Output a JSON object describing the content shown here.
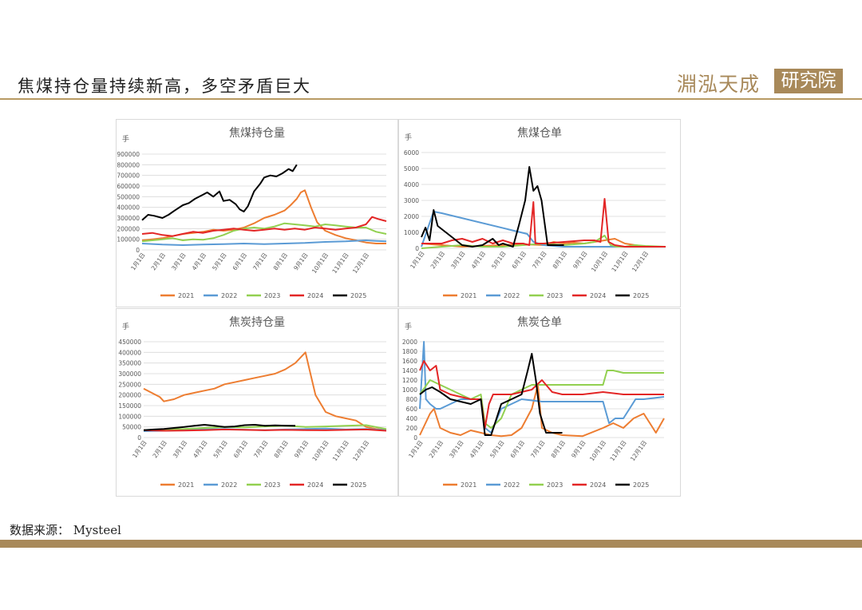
{
  "header": {
    "title": "焦煤持仓量持续新高，多空矛盾巨大",
    "logo_text": "淵泓天成",
    "logo_box_text": "研究院"
  },
  "footer": {
    "source": "数据来源： Mysteel"
  },
  "colors": {
    "2021": "#ED7D31",
    "2022": "#5B9BD5",
    "2023": "#92D050",
    "2024": "#E32626",
    "2025": "#000000"
  },
  "chart_data": [
    {
      "id": "coking-coal-oi",
      "type": "line",
      "title": "焦煤持仓量",
      "unit_label": "手",
      "ylim": [
        0,
        900000
      ],
      "y_ticks": [
        "0",
        "100000",
        "200000",
        "300000",
        "400000",
        "500000",
        "600000",
        "700000",
        "800000",
        "900000"
      ],
      "x_ticks": [
        "1月1日",
        "2月1日",
        "3月1日",
        "4月1日",
        "5月1日",
        "6月1日",
        "7月1日",
        "8月1日",
        "9月1日",
        "10月1日",
        "11月1日",
        "12月1日"
      ],
      "series": [
        {
          "name": "2021",
          "x": [
            0,
            0.5,
            1,
            1.5,
            2,
            2.5,
            3,
            3.5,
            4,
            4.5,
            5,
            5.5,
            6,
            6.5,
            7,
            7.3,
            7.6,
            7.8,
            8,
            8.3,
            8.6,
            9,
            9.5,
            10,
            10.5,
            11,
            11.5,
            12
          ],
          "values": [
            90000,
            100000,
            110000,
            130000,
            150000,
            160000,
            170000,
            190000,
            180000,
            190000,
            210000,
            250000,
            300000,
            330000,
            370000,
            420000,
            480000,
            540000,
            560000,
            400000,
            260000,
            180000,
            140000,
            110000,
            90000,
            70000,
            60000,
            60000
          ]
        },
        {
          "name": "2022",
          "x": [
            0,
            1,
            2,
            3,
            4,
            5,
            6,
            7,
            8,
            9,
            10,
            11,
            11.5,
            12
          ],
          "values": [
            60000,
            50000,
            45000,
            50000,
            55000,
            60000,
            55000,
            60000,
            65000,
            75000,
            80000,
            90000,
            85000,
            80000
          ]
        },
        {
          "name": "2023",
          "x": [
            0,
            0.5,
            1,
            1.5,
            2,
            2.5,
            3,
            3.5,
            4,
            4.5,
            5,
            5.5,
            6,
            6.5,
            7,
            7.5,
            8,
            8.5,
            9,
            9.5,
            10,
            10.5,
            11,
            11.5,
            12
          ],
          "values": [
            80000,
            90000,
            100000,
            110000,
            90000,
            100000,
            95000,
            110000,
            140000,
            180000,
            200000,
            210000,
            200000,
            220000,
            250000,
            240000,
            230000,
            220000,
            240000,
            230000,
            220000,
            210000,
            210000,
            170000,
            150000
          ]
        },
        {
          "name": "2024",
          "x": [
            0,
            0.5,
            1,
            1.5,
            2,
            2.5,
            3,
            3.5,
            4,
            4.5,
            5,
            5.5,
            6,
            6.5,
            7,
            7.5,
            8,
            8.5,
            9,
            9.5,
            10,
            10.5,
            11,
            11.3,
            11.6,
            12
          ],
          "values": [
            150000,
            160000,
            140000,
            130000,
            150000,
            170000,
            160000,
            180000,
            190000,
            200000,
            190000,
            180000,
            190000,
            200000,
            190000,
            200000,
            190000,
            210000,
            200000,
            190000,
            200000,
            210000,
            240000,
            310000,
            290000,
            270000
          ]
        },
        {
          "name": "2025",
          "x": [
            0,
            0.3,
            0.6,
            1,
            1.3,
            1.6,
            2,
            2.3,
            2.6,
            3,
            3.2,
            3.5,
            3.8,
            4,
            4.3,
            4.6,
            4.8,
            5,
            5.2,
            5.5,
            5.8,
            6,
            6.3,
            6.6,
            6.9,
            7.2,
            7.4,
            7.6
          ],
          "values": [
            280000,
            330000,
            320000,
            300000,
            330000,
            370000,
            420000,
            440000,
            480000,
            520000,
            540000,
            500000,
            550000,
            460000,
            470000,
            430000,
            380000,
            360000,
            410000,
            550000,
            620000,
            680000,
            700000,
            690000,
            720000,
            760000,
            740000,
            800000
          ]
        }
      ]
    },
    {
      "id": "coking-coal-warrants",
      "type": "line",
      "title": "焦煤仓单",
      "unit_label": "手",
      "ylim": [
        0,
        6000
      ],
      "y_ticks": [
        "0",
        "1000",
        "2000",
        "3000",
        "4000",
        "5000",
        "6000"
      ],
      "x_ticks": [
        "1月1日",
        "2月1日",
        "3月1日",
        "4月1日",
        "5月1日",
        "6月1日",
        "7月1日",
        "8月1日",
        "9月1日",
        "10月1日",
        "11月1日",
        "12月1日"
      ],
      "series": [
        {
          "name": "2021",
          "x": [
            0,
            1,
            2,
            3,
            4,
            5,
            6,
            6.5,
            7,
            7.5,
            8,
            8.5,
            9,
            9.5,
            10,
            10.5,
            11,
            12
          ],
          "values": [
            300,
            200,
            100,
            150,
            200,
            250,
            200,
            400,
            300,
            350,
            300,
            400,
            500,
            600,
            300,
            200,
            100,
            100
          ]
        },
        {
          "name": "2022",
          "x": [
            0,
            0.3,
            0.6,
            1,
            5.2,
            5.5,
            6,
            7,
            8,
            9,
            10,
            11,
            12
          ],
          "values": [
            100,
            1200,
            2300,
            2200,
            900,
            400,
            200,
            100,
            100,
            100,
            100,
            100,
            100
          ]
        },
        {
          "name": "2023",
          "x": [
            0,
            1,
            2,
            3,
            4,
            5,
            6,
            7,
            8,
            8.5,
            9,
            9.3,
            9.6,
            10,
            10.5,
            11,
            12
          ],
          "values": [
            0,
            100,
            200,
            100,
            100,
            200,
            300,
            200,
            300,
            400,
            800,
            200,
            100,
            100,
            200,
            150,
            100
          ]
        },
        {
          "name": "2024",
          "x": [
            0,
            1,
            1.5,
            2,
            2.5,
            3,
            3.5,
            4,
            4.5,
            5,
            5.3,
            5.5,
            5.6,
            6,
            7,
            8,
            8.5,
            8.8,
            9,
            9.2,
            9.5,
            10,
            11,
            12
          ],
          "values": [
            300,
            300,
            500,
            600,
            400,
            600,
            300,
            500,
            300,
            300,
            200,
            2900,
            300,
            300,
            400,
            500,
            500,
            400,
            3100,
            400,
            200,
            100,
            100,
            100
          ]
        },
        {
          "name": "2025",
          "x": [
            0,
            0.2,
            0.4,
            0.6,
            0.8,
            1,
            1.5,
            2,
            2.5,
            3,
            3.5,
            3.8,
            4,
            4.5,
            4.8,
            5.1,
            5.3,
            5.5,
            5.7,
            5.9,
            6.2,
            7
          ],
          "values": [
            700,
            1300,
            500,
            2400,
            1400,
            1200,
            700,
            200,
            100,
            200,
            600,
            200,
            300,
            100,
            1500,
            3000,
            5100,
            3600,
            3900,
            3000,
            200,
            200
          ]
        }
      ]
    },
    {
      "id": "coke-oi",
      "type": "line",
      "title": "焦炭持仓量",
      "unit_label": "手",
      "ylim": [
        0,
        450000
      ],
      "y_ticks": [
        "0",
        "50000",
        "100000",
        "150000",
        "200000",
        "250000",
        "300000",
        "350000",
        "400000",
        "450000"
      ],
      "x_ticks": [
        "1月1日",
        "2月1日",
        "3月1日",
        "4月1日",
        "5月1日",
        "6月1日",
        "7月1日",
        "8月1日",
        "9月1日",
        "10月1日",
        "11月1日",
        "12月1日"
      ],
      "series": [
        {
          "name": "2021",
          "x": [
            0,
            0.4,
            0.8,
            1,
            1.5,
            2,
            2.5,
            3,
            3.5,
            4,
            4.5,
            5,
            5.5,
            6,
            6.5,
            7,
            7.5,
            7.8,
            8,
            8.2,
            8.5,
            9,
            9.5,
            10,
            10.5,
            11,
            11.5,
            12
          ],
          "values": [
            230000,
            210000,
            190000,
            170000,
            180000,
            200000,
            210000,
            220000,
            230000,
            250000,
            260000,
            270000,
            280000,
            290000,
            300000,
            320000,
            350000,
            380000,
            400000,
            320000,
            200000,
            120000,
            100000,
            90000,
            80000,
            50000,
            40000,
            35000
          ]
        },
        {
          "name": "2022",
          "x": [
            0,
            1,
            2,
            3,
            4,
            5,
            6,
            7,
            8,
            9,
            10,
            11,
            12
          ],
          "values": [
            30000,
            32000,
            35000,
            38000,
            40000,
            37000,
            35000,
            38000,
            40000,
            42000,
            38000,
            40000,
            35000
          ]
        },
        {
          "name": "2023",
          "x": [
            0,
            1,
            2,
            3,
            4,
            5,
            6,
            7,
            8,
            9,
            10,
            11,
            12
          ],
          "values": [
            35000,
            38000,
            40000,
            45000,
            50000,
            48000,
            52000,
            55000,
            50000,
            52000,
            55000,
            58000,
            40000
          ]
        },
        {
          "name": "2024",
          "x": [
            0,
            1,
            2,
            3,
            4,
            5,
            6,
            7,
            8,
            9,
            10,
            11,
            12
          ],
          "values": [
            35000,
            32000,
            33000,
            35000,
            38000,
            36000,
            34000,
            36000,
            35000,
            34000,
            36000,
            38000,
            32000
          ]
        },
        {
          "name": "2025",
          "x": [
            0,
            0.5,
            1,
            1.5,
            2,
            2.5,
            3,
            3.5,
            4,
            4.5,
            5,
            5.5,
            6,
            6.5,
            7,
            7.5
          ],
          "values": [
            35000,
            38000,
            40000,
            45000,
            50000,
            55000,
            60000,
            55000,
            50000,
            52000,
            58000,
            60000,
            55000,
            57000,
            56000,
            55000
          ]
        }
      ]
    },
    {
      "id": "coke-warrants",
      "type": "line",
      "title": "焦炭仓单",
      "unit_label": "手",
      "ylim": [
        0,
        2000
      ],
      "y_ticks": [
        "0",
        "200",
        "400",
        "600",
        "800",
        "1000",
        "1200",
        "1400",
        "1600",
        "1800",
        "2000"
      ],
      "x_ticks": [
        "1月1日",
        "2月1日",
        "3月1日",
        "4月1日",
        "5月1日",
        "6月1日",
        "7月1日",
        "8月1日",
        "9月1日",
        "10月1日",
        "11月1日",
        "12月1日"
      ],
      "series": [
        {
          "name": "2021",
          "x": [
            0,
            0.5,
            0.7,
            1,
            1.5,
            2,
            2.5,
            3,
            3.5,
            4,
            4.5,
            5,
            5.5,
            5.8,
            6,
            6.5,
            7,
            8,
            9,
            9.5,
            10,
            10.5,
            11,
            11.3,
            11.6,
            12
          ],
          "values": [
            50,
            500,
            600,
            200,
            100,
            50,
            150,
            100,
            50,
            30,
            50,
            200,
            600,
            1100,
            200,
            100,
            50,
            30,
            200,
            300,
            200,
            400,
            500,
            300,
            100,
            400
          ]
        },
        {
          "name": "2022",
          "x": [
            0,
            0.2,
            0.3,
            0.5,
            0.8,
            1,
            2,
            3,
            3.2,
            3.5,
            4,
            4.5,
            5,
            6,
            7,
            8,
            9,
            9.3,
            9.6,
            10,
            10.3,
            10.6,
            11,
            12
          ],
          "values": [
            600,
            2000,
            800,
            700,
            600,
            600,
            800,
            800,
            200,
            100,
            600,
            700,
            800,
            750,
            750,
            750,
            750,
            300,
            400,
            400,
            600,
            800,
            800,
            850
          ]
        },
        {
          "name": "2023",
          "x": [
            0,
            0.5,
            1,
            1.5,
            2,
            2.5,
            3,
            3.2,
            3.5,
            4,
            4.5,
            5,
            5.5,
            6,
            7,
            8,
            9,
            9.2,
            9.5,
            10,
            11,
            12
          ],
          "values": [
            900,
            1200,
            1100,
            1000,
            900,
            800,
            900,
            300,
            200,
            400,
            900,
            1000,
            1100,
            1100,
            1100,
            1100,
            1100,
            1400,
            1400,
            1350,
            1350,
            1350
          ]
        },
        {
          "name": "2024",
          "x": [
            0,
            0.2,
            0.5,
            0.8,
            1,
            1.5,
            2,
            2.5,
            3,
            3.2,
            3.4,
            3.6,
            4,
            4.5,
            5,
            5.5,
            6,
            6.5,
            7,
            8,
            9,
            10,
            11,
            12
          ],
          "values": [
            1400,
            1600,
            1400,
            1500,
            1000,
            900,
            850,
            800,
            800,
            200,
            700,
            900,
            900,
            900,
            950,
            1000,
            1200,
            950,
            900,
            900,
            950,
            900,
            900,
            900
          ]
        },
        {
          "name": "2025",
          "x": [
            0,
            0.3,
            0.6,
            1,
            1.5,
            2,
            2.5,
            3,
            3.2,
            3.5,
            4,
            4.5,
            5,
            5.3,
            5.5,
            5.7,
            5.9,
            6.2,
            6.5,
            7
          ],
          "values": [
            900,
            1000,
            1050,
            950,
            800,
            750,
            700,
            800,
            50,
            50,
            700,
            800,
            900,
            1400,
            1750,
            1200,
            500,
            100,
            100,
            100
          ]
        }
      ]
    }
  ]
}
